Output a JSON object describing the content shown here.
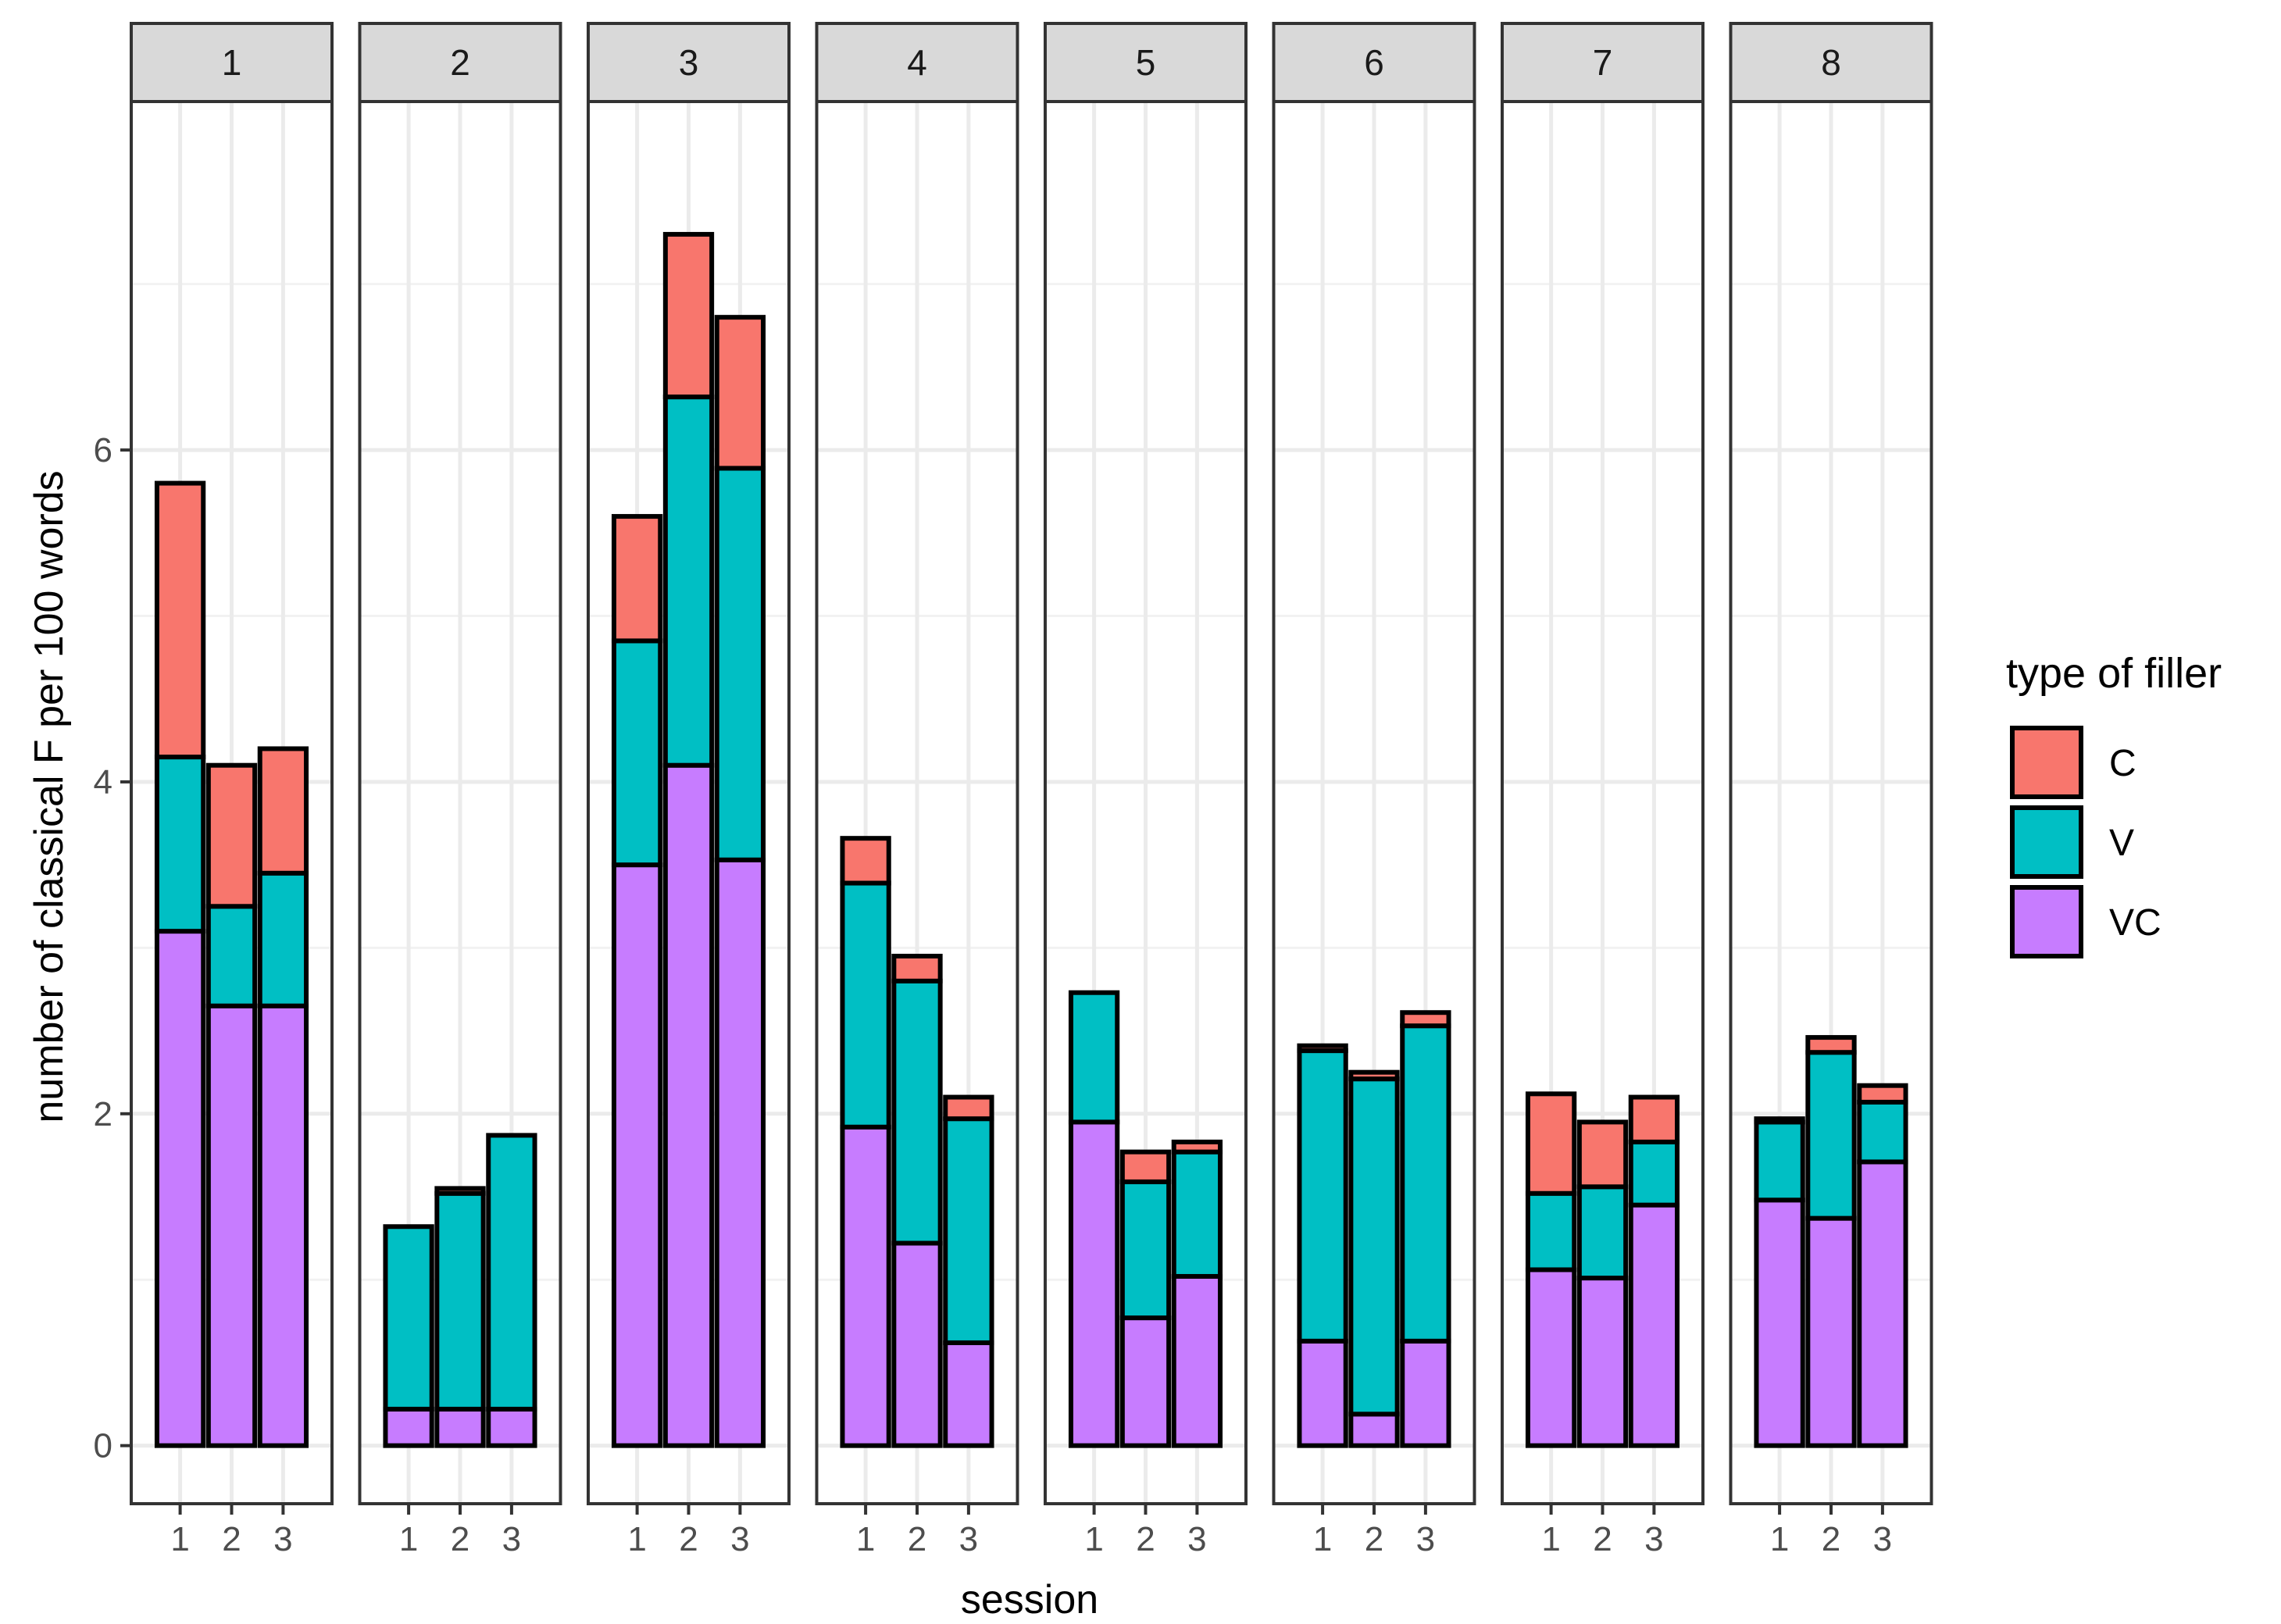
{
  "chart_data": {
    "type": "bar",
    "stacked": true,
    "faceted": true,
    "facets": [
      "1",
      "2",
      "3",
      "4",
      "5",
      "6",
      "7",
      "8"
    ],
    "categories": [
      "1",
      "2",
      "3"
    ],
    "xlabel": "session",
    "ylabel": "number of classical F per 100 words",
    "ylim": [
      -0.35,
      8.1
    ],
    "yticks": [
      "0",
      "2",
      "4",
      "6"
    ],
    "ytick_values": [
      0,
      2,
      4,
      6
    ],
    "grid": true,
    "legend": {
      "title": "type of filler",
      "position": "right",
      "entries": [
        {
          "name": "C",
          "color": "#F8766D"
        },
        {
          "name": "V",
          "color": "#00BFC4"
        },
        {
          "name": "VC",
          "color": "#C77CFF"
        }
      ]
    },
    "stack_order_bottom_to_top": [
      "VC",
      "V",
      "C"
    ],
    "panels": [
      {
        "facet": "1",
        "VC": [
          3.1,
          2.65,
          2.65
        ],
        "V": [
          1.05,
          0.6,
          0.8
        ],
        "C": [
          1.65,
          0.85,
          0.75
        ]
      },
      {
        "facet": "2",
        "VC": [
          0.22,
          0.22,
          0.22
        ],
        "V": [
          1.1,
          1.3,
          1.65
        ],
        "C": [
          0.0,
          0.03,
          0.0
        ]
      },
      {
        "facet": "3",
        "VC": [
          3.5,
          4.1,
          3.53
        ],
        "V": [
          1.35,
          2.22,
          2.36
        ],
        "C": [
          0.75,
          0.98,
          0.91
        ]
      },
      {
        "facet": "4",
        "VC": [
          1.92,
          1.22,
          0.62
        ],
        "V": [
          1.47,
          1.58,
          1.35
        ],
        "C": [
          0.27,
          0.15,
          0.13
        ]
      },
      {
        "facet": "5",
        "VC": [
          1.95,
          0.77,
          1.02
        ],
        "V": [
          0.78,
          0.82,
          0.75
        ],
        "C": [
          0.0,
          0.18,
          0.06
        ]
      },
      {
        "facet": "6",
        "VC": [
          0.63,
          0.19,
          0.63
        ],
        "V": [
          1.75,
          2.02,
          1.9
        ],
        "C": [
          0.03,
          0.04,
          0.08
        ]
      },
      {
        "facet": "7",
        "VC": [
          1.06,
          1.01,
          1.45
        ],
        "V": [
          0.46,
          0.55,
          0.38
        ],
        "C": [
          0.6,
          0.39,
          0.27
        ]
      },
      {
        "facet": "8",
        "VC": [
          1.48,
          1.37,
          1.71
        ],
        "V": [
          0.47,
          1.0,
          0.36
        ],
        "C": [
          0.02,
          0.09,
          0.1
        ]
      }
    ]
  }
}
